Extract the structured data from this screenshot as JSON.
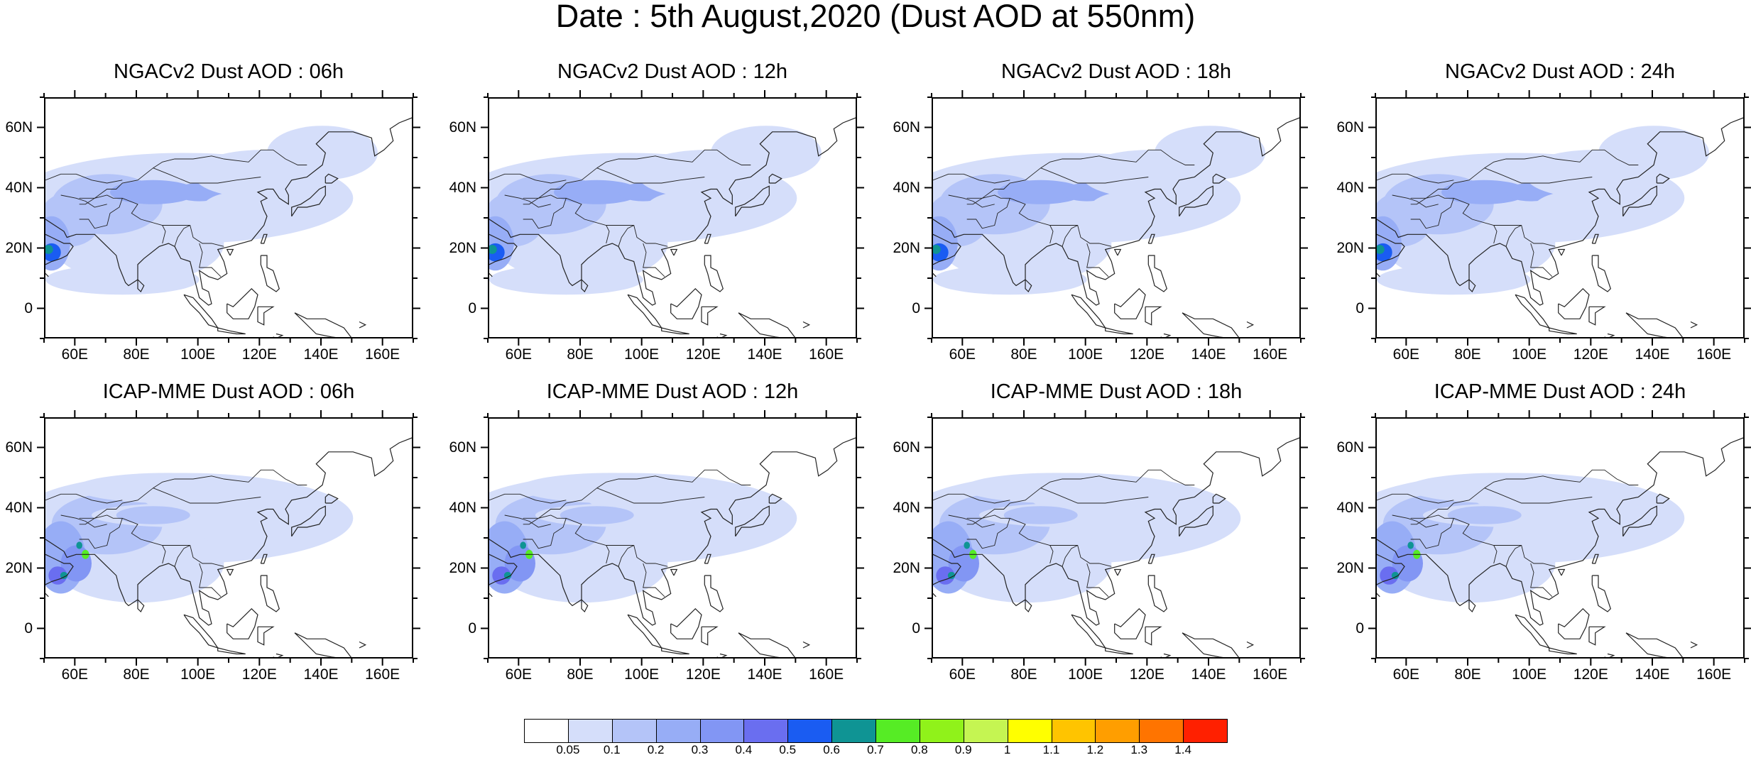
{
  "title": "Date : 5th August,2020 (Dust AOD at 550nm)",
  "panels": [
    {
      "title": "NGACv2 Dust AOD : 06h",
      "model": "NGACv2",
      "hour": "06h"
    },
    {
      "title": "NGACv2 Dust AOD : 12h",
      "model": "NGACv2",
      "hour": "12h"
    },
    {
      "title": "NGACv2 Dust AOD : 18h",
      "model": "NGACv2",
      "hour": "18h"
    },
    {
      "title": "NGACv2 Dust AOD : 24h",
      "model": "NGACv2",
      "hour": "24h"
    },
    {
      "title": "ICAP-MME Dust AOD : 06h",
      "model": "ICAP-MME",
      "hour": "06h"
    },
    {
      "title": "ICAP-MME Dust AOD : 12h",
      "model": "ICAP-MME",
      "hour": "12h"
    },
    {
      "title": "ICAP-MME Dust AOD : 18h",
      "model": "ICAP-MME",
      "hour": "18h"
    },
    {
      "title": "ICAP-MME Dust AOD : 24h",
      "model": "ICAP-MME",
      "hour": "24h"
    }
  ],
  "axes": {
    "lat_labels": [
      "60N",
      "40N",
      "20N",
      "0"
    ],
    "lat_values": [
      60,
      40,
      20,
      0
    ],
    "lon_labels": [
      "60E",
      "80E",
      "100E",
      "120E",
      "140E",
      "160E"
    ],
    "lon_values": [
      60,
      80,
      100,
      120,
      140,
      160
    ],
    "lon_range": [
      50,
      170
    ],
    "lat_range": [
      -10,
      70
    ]
  },
  "colorbar": {
    "labels": [
      "0.05",
      "0.1",
      "0.2",
      "0.3",
      "0.4",
      "0.5",
      "0.6",
      "0.7",
      "0.8",
      "0.9",
      "1",
      "1.1",
      "1.2",
      "1.3",
      "1.4"
    ],
    "colors": [
      "#ffffff",
      "#d5defa",
      "#b4c4f8",
      "#97adf6",
      "#8296f4",
      "#6a6ef0",
      "#1a5cf2",
      "#0f9494",
      "#56ec25",
      "#90f21a",
      "#c5f552",
      "#ffff00",
      "#ffc400",
      "#ff9e00",
      "#ff7400",
      "#ff2000"
    ]
  }
}
